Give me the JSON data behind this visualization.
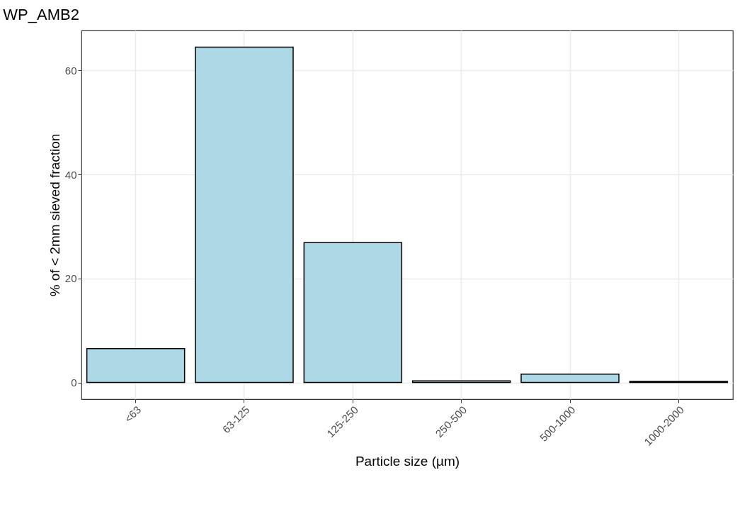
{
  "chart_data": {
    "type": "bar",
    "title": "WP_AMB2",
    "xlabel": "Particle size (µm)",
    "ylabel": "% of < 2mm sieved fraction",
    "categories": [
      "<63",
      "63-125",
      "125-250",
      "250-500",
      "500-1000",
      "1000-2000"
    ],
    "values": [
      6.5,
      64.5,
      26.9,
      0.3,
      1.6,
      0.2
    ],
    "color": "#add8e6",
    "ylim": [
      -3.2,
      67.7
    ],
    "yticks": [
      0,
      20,
      40,
      60
    ],
    "grid": true
  }
}
